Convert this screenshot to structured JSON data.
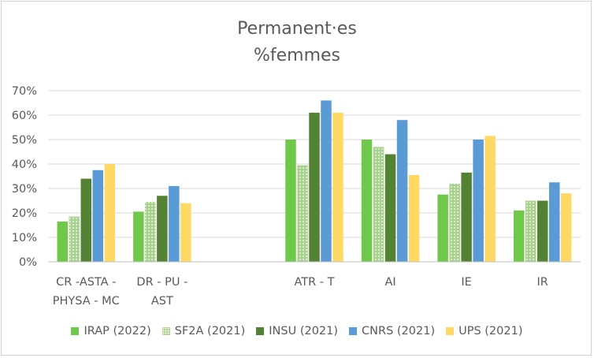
{
  "chart_data": {
    "type": "bar",
    "title": "Permanent·es",
    "subtitle": "%femmes",
    "xlabel": "",
    "ylabel": "",
    "ylim": [
      0,
      70
    ],
    "yticks": [
      "0%",
      "10%",
      "20%",
      "30%",
      "40%",
      "50%",
      "60%",
      "70%"
    ],
    "grid": true,
    "legend_position": "bottom",
    "categories": [
      "CR -ASTA - PHYSA - MC",
      "DR - PU - AST",
      "",
      "ATR - T",
      "AI",
      "IE",
      "IR"
    ],
    "category_lines": [
      [
        "CR -ASTA -",
        "PHYSA - MC"
      ],
      [
        "DR - PU -",
        "AST"
      ],
      [
        ""
      ],
      [
        "ATR - T"
      ],
      [
        "AI"
      ],
      [
        "IE"
      ],
      [
        "IR"
      ]
    ],
    "series": [
      {
        "name": "IRAP (2022)",
        "color": "#70c84a",
        "pattern": "solid",
        "values": [
          16.5,
          20.5,
          null,
          50,
          50,
          27.5,
          21
        ]
      },
      {
        "name": "SF2A (2021)",
        "color": "#a9d18e",
        "pattern": "dotted",
        "values": [
          18.5,
          24.5,
          null,
          39.5,
          47,
          32,
          25
        ]
      },
      {
        "name": "INSU (2021)",
        "color": "#548235",
        "pattern": "solid",
        "values": [
          34,
          27,
          null,
          61,
          44,
          36.5,
          25
        ]
      },
      {
        "name": "CNRS (2021)",
        "color": "#5b9bd5",
        "pattern": "solid",
        "values": [
          37.5,
          31,
          null,
          66,
          58,
          50,
          32.5
        ]
      },
      {
        "name": "UPS (2021)",
        "color": "#ffd966",
        "pattern": "solid",
        "values": [
          40,
          24,
          null,
          61,
          35.5,
          51.5,
          28
        ]
      }
    ]
  }
}
